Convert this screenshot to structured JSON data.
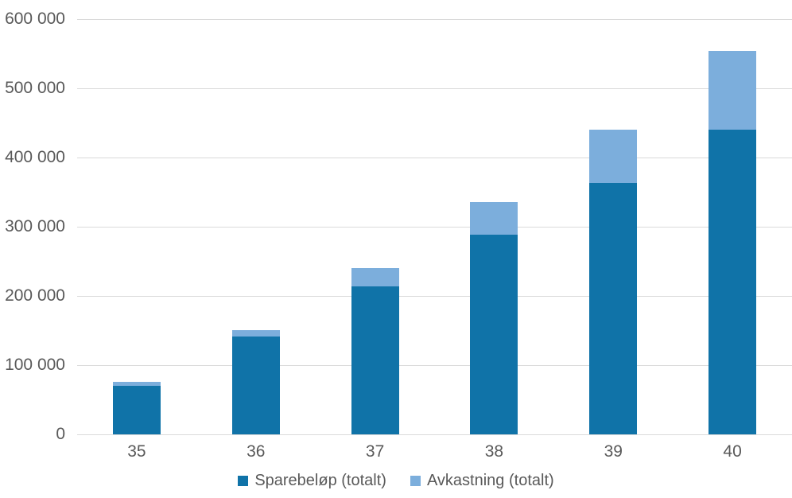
{
  "chart_data": {
    "type": "bar",
    "stacked": true,
    "title": "",
    "xlabel": "",
    "ylabel": "",
    "categories": [
      "35",
      "36",
      "37",
      "38",
      "39",
      "40"
    ],
    "series": [
      {
        "name": "Sparebeløp (totalt)",
        "color": "#1073A8",
        "values": [
          70000,
          141000,
          214000,
          288000,
          363000,
          440000
        ]
      },
      {
        "name": "Avkastning (totalt)",
        "color": "#7CAEDC",
        "values": [
          6000,
          10000,
          26000,
          48000,
          77000,
          114000
        ]
      }
    ],
    "stack_totals": [
      76000,
      151000,
      240000,
      336000,
      440000,
      554000
    ],
    "ylim": [
      0,
      600000
    ],
    "ytick_step": 100000,
    "ytick_labels": [
      "0",
      "100 000",
      "200 000",
      "300 000",
      "400 000",
      "500 000",
      "600 000"
    ],
    "grid": true,
    "legend_position": "bottom-center",
    "colors": {
      "background": "#FFFFFF",
      "gridline": "#DADADA",
      "axis_text": "#595959"
    }
  }
}
